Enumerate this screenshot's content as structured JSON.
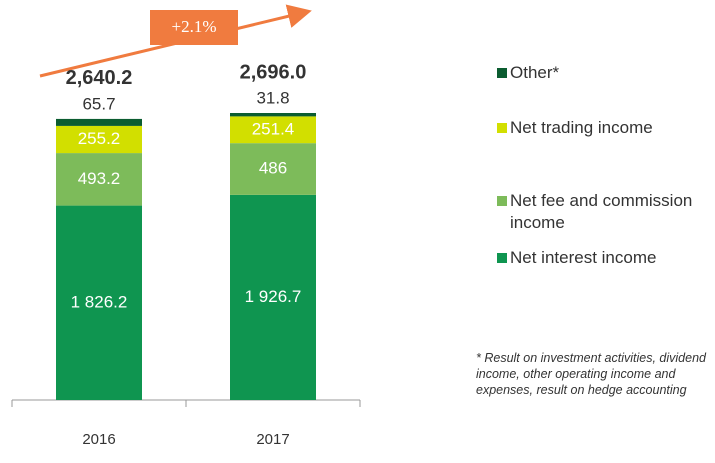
{
  "chart_data": {
    "type": "stacked-bar",
    "categories": [
      "2016",
      "2017"
    ],
    "series": [
      {
        "name": "Net interest income",
        "color": "#0f9550",
        "values": [
          1826.2,
          1926.7
        ],
        "value_labels": [
          "1 826.2",
          "1 926.7"
        ]
      },
      {
        "name": "Net fee and commission income",
        "color": "#7dbb5a",
        "values": [
          493.2,
          486.0
        ]
      },
      {
        "name": "Net trading income",
        "color": "#d2df00",
        "values": [
          255.2,
          251.4
        ]
      },
      {
        "name": "Other*",
        "color": "#0b5c30",
        "values": [
          65.7,
          31.8
        ]
      }
    ],
    "totals": {
      "values": [
        2640.2,
        2696.0
      ],
      "value_labels": [
        "2,640.2",
        "2,696.0"
      ]
    },
    "annotation": "+2.1%",
    "note": "* Result on investment activities, dividend income, other operating income and expenses, result on hedge accounting"
  }
}
